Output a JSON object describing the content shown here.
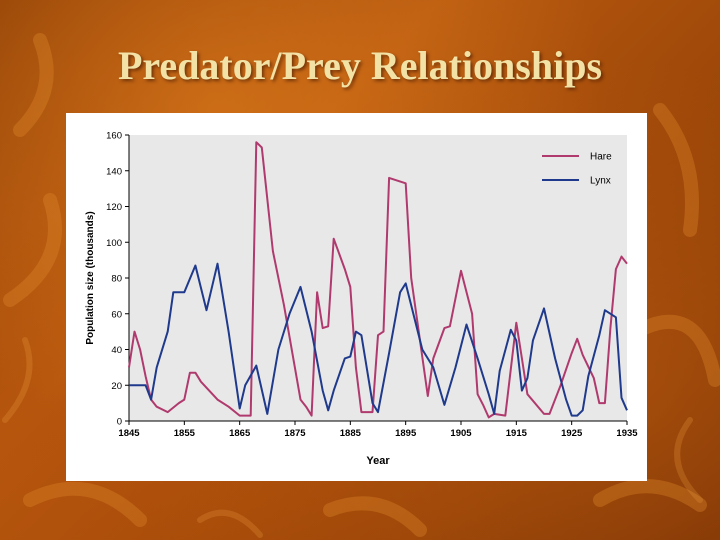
{
  "slide": {
    "title": "Predator/Prey Relationships"
  },
  "chart_data": {
    "type": "line",
    "title": "",
    "xlabel": "Year",
    "ylabel": "Population size (thousands)",
    "xlim": [
      1845,
      1935
    ],
    "ylim": [
      0,
      160
    ],
    "x_ticks": [
      "1845",
      "1855",
      "1865",
      "1875",
      "1885",
      "1895",
      "1905",
      "1915",
      "1925",
      "1935"
    ],
    "y_ticks": [
      "0",
      "20",
      "40",
      "60",
      "80",
      "100",
      "120",
      "140",
      "160"
    ],
    "legend_position": "top-right",
    "series": [
      {
        "name": "Hare",
        "color": "#b03a6e",
        "x": [
          1845,
          1846,
          1847,
          1848,
          1849,
          1850,
          1852,
          1854,
          1855,
          1856,
          1857,
          1858,
          1861,
          1863,
          1865,
          1867,
          1868,
          1869,
          1871,
          1873,
          1876,
          1877,
          1878,
          1879,
          1880,
          1881,
          1882,
          1884,
          1885,
          1886,
          1887,
          1889,
          1890,
          1891,
          1892,
          1895,
          1896,
          1899,
          1900,
          1902,
          1903,
          1905,
          1907,
          1908,
          1909,
          1910,
          1911,
          1913,
          1915,
          1916,
          1917,
          1920,
          1921,
          1923,
          1925,
          1926,
          1927,
          1929,
          1930,
          1931,
          1932,
          1933,
          1934,
          1935
        ],
        "y": [
          30,
          50,
          40,
          25,
          12,
          8,
          5,
          10,
          12,
          27,
          27,
          22,
          12,
          8,
          3,
          3,
          156,
          153,
          95,
          65,
          12,
          8,
          3,
          72,
          52,
          53,
          102,
          85,
          75,
          30,
          5,
          5,
          48,
          50,
          136,
          133,
          80,
          14,
          35,
          52,
          53,
          84,
          60,
          15,
          9,
          2,
          4,
          3,
          55,
          35,
          15,
          4,
          4,
          20,
          38,
          46,
          37,
          24,
          10,
          10,
          52,
          85,
          92,
          88
        ]
      },
      {
        "name": "Lynx",
        "color": "#1f3a8c",
        "x": [
          1845,
          1846,
          1848,
          1849,
          1850,
          1852,
          1853,
          1855,
          1857,
          1859,
          1861,
          1863,
          1865,
          1866,
          1868,
          1870,
          1872,
          1874,
          1876,
          1878,
          1880,
          1881,
          1882,
          1884,
          1885,
          1886,
          1887,
          1889,
          1890,
          1892,
          1894,
          1895,
          1898,
          1900,
          1902,
          1904,
          1906,
          1908,
          1910,
          1911,
          1912,
          1914,
          1915,
          1916,
          1917,
          1918,
          1920,
          1922,
          1924,
          1925,
          1926,
          1927,
          1928,
          1930,
          1931,
          1933,
          1934,
          1935
        ],
        "y": [
          20,
          20,
          20,
          12,
          30,
          50,
          72,
          72,
          87,
          62,
          88,
          50,
          7,
          20,
          31,
          4,
          40,
          60,
          75,
          50,
          17,
          6,
          17,
          35,
          36,
          50,
          48,
          10,
          5,
          38,
          72,
          77,
          40,
          30,
          9,
          30,
          54,
          35,
          15,
          4,
          28,
          51,
          45,
          17,
          24,
          45,
          63,
          35,
          12,
          3,
          3,
          6,
          25,
          48,
          62,
          58,
          13,
          6
        ]
      }
    ]
  }
}
